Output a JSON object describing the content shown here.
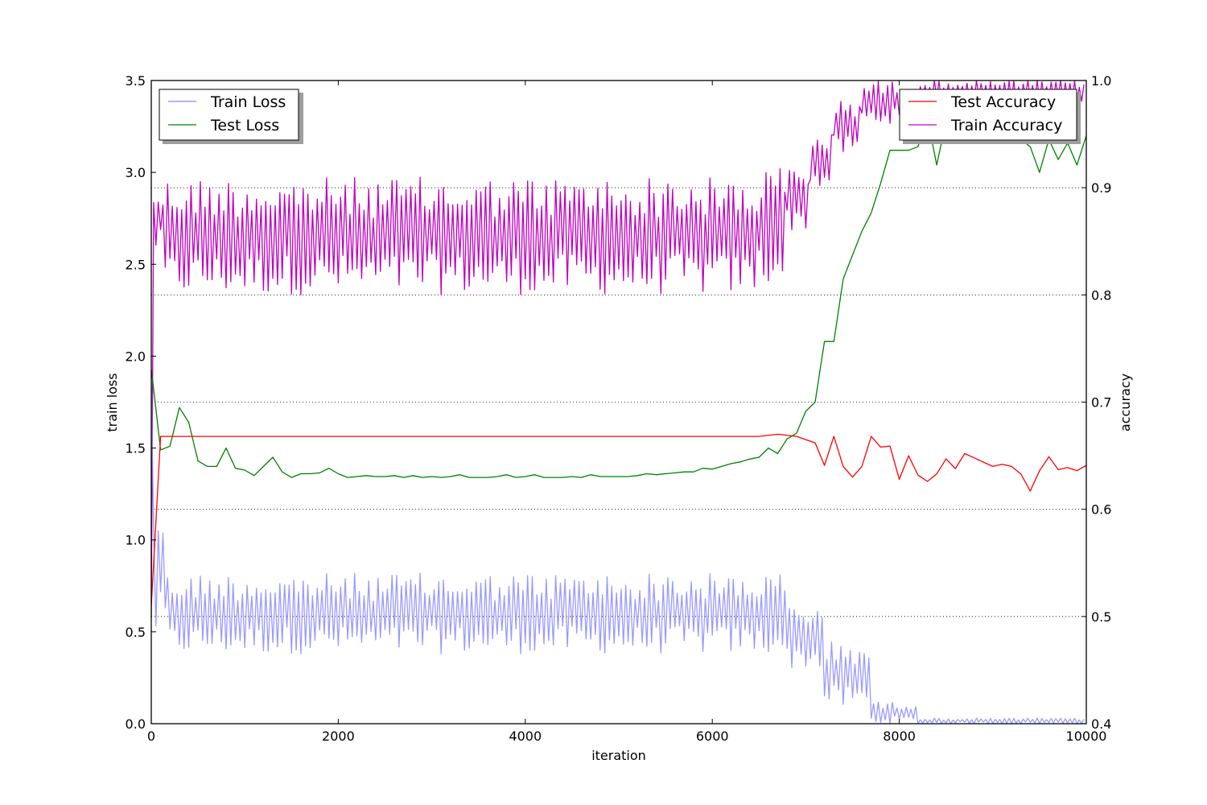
{
  "chart_data": {
    "type": "line",
    "xlabel": "iteration",
    "ylabel_left": "train loss",
    "ylabel_right": "accuracy",
    "xlim": [
      0,
      10000
    ],
    "ylim_left": [
      0.0,
      3.5
    ],
    "ylim_right": [
      0.4,
      1.0
    ],
    "x_ticks": [
      0,
      2000,
      4000,
      6000,
      8000,
      10000
    ],
    "x_tick_labels": [
      "0",
      "2000",
      "4000",
      "6000",
      "8000",
      "10000"
    ],
    "y_left_ticks": [
      0.0,
      0.5,
      1.0,
      1.5,
      2.0,
      2.5,
      3.0,
      3.5
    ],
    "y_left_tick_labels": [
      "0.0",
      "0.5",
      "1.0",
      "1.5",
      "2.0",
      "2.5",
      "3.0",
      "3.5"
    ],
    "y_right_ticks": [
      0.4,
      0.5,
      0.6,
      0.7,
      0.8,
      0.9,
      1.0
    ],
    "y_right_tick_labels": [
      "0.4",
      "0.5",
      "0.6",
      "0.7",
      "0.8",
      "0.9",
      "1.0"
    ],
    "grid": "dotted horizontal at accuracy ticks",
    "legend_left": {
      "placement": "top-left",
      "entries": [
        "Train Loss",
        "Test Loss"
      ]
    },
    "legend_right": {
      "placement": "top-right",
      "entries": [
        "Test Accuracy",
        "Train Accuracy"
      ]
    },
    "series": [
      {
        "name": "Train Loss",
        "axis": "left",
        "color": "#8888ff",
        "opacity": 0.85,
        "generator": {
          "step": 25,
          "start": 1.9,
          "segments": [
            {
              "x0": 25,
              "x1": 175,
              "low": 0.45,
              "high": 1.22
            },
            {
              "x0": 175,
              "x1": 6800,
              "low": 0.38,
              "high": 0.82
            },
            {
              "x0": 6800,
              "x1": 7200,
              "low": 0.3,
              "high": 0.65
            },
            {
              "x0": 7200,
              "x1": 7700,
              "low": 0.08,
              "high": 0.45
            },
            {
              "x0": 7700,
              "x1": 8200,
              "low": 0.0,
              "high": 0.12
            },
            {
              "x0": 8200,
              "x1": 10000,
              "low": 0.0,
              "high": 0.03
            }
          ]
        }
      },
      {
        "name": "Test Loss",
        "axis": "left",
        "color": "#008000",
        "x": [
          0,
          100,
          200,
          300,
          400,
          500,
          600,
          700,
          800,
          900,
          1000,
          1100,
          1200,
          1300,
          1400,
          1500,
          1600,
          1700,
          1800,
          1900,
          2000,
          2100,
          2200,
          2300,
          2400,
          2500,
          2600,
          2700,
          2800,
          2900,
          3000,
          3100,
          3200,
          3300,
          3400,
          3500,
          3600,
          3700,
          3800,
          3900,
          4000,
          4100,
          4200,
          4300,
          4400,
          4500,
          4600,
          4700,
          4800,
          4900,
          5000,
          5100,
          5200,
          5300,
          5400,
          5500,
          5600,
          5700,
          5800,
          5900,
          6000,
          6100,
          6200,
          6300,
          6400,
          6500,
          6600,
          6700,
          6800,
          6900,
          7000,
          7100,
          7200,
          7300,
          7400,
          7500,
          7600,
          7700,
          7800,
          7900,
          8000,
          8100,
          8200,
          8300,
          8400,
          8500,
          8600,
          8700,
          8800,
          8900,
          9000,
          9100,
          9200,
          9300,
          9400,
          9500,
          9600,
          9700,
          9800,
          9900,
          10000
        ],
        "y": [
          1.93,
          1.49,
          1.51,
          1.72,
          1.64,
          1.43,
          1.4,
          1.4,
          1.5,
          1.39,
          1.38,
          1.35,
          1.4,
          1.45,
          1.37,
          1.34,
          1.36,
          1.36,
          1.365,
          1.39,
          1.36,
          1.34,
          1.345,
          1.35,
          1.345,
          1.345,
          1.35,
          1.34,
          1.35,
          1.34,
          1.345,
          1.34,
          1.345,
          1.355,
          1.34,
          1.34,
          1.34,
          1.345,
          1.355,
          1.34,
          1.345,
          1.355,
          1.34,
          1.34,
          1.34,
          1.345,
          1.34,
          1.355,
          1.345,
          1.345,
          1.345,
          1.345,
          1.35,
          1.36,
          1.355,
          1.36,
          1.365,
          1.37,
          1.37,
          1.39,
          1.385,
          1.4,
          1.415,
          1.425,
          1.44,
          1.45,
          1.5,
          1.47,
          1.55,
          1.58,
          1.7,
          1.75,
          2.08,
          2.08,
          2.42,
          2.55,
          2.68,
          2.78,
          2.94,
          3.12,
          3.12,
          3.12,
          3.14,
          3.3,
          3.04,
          3.28,
          3.3,
          3.16,
          3.25,
          3.25,
          3.25,
          3.28,
          3.2,
          3.18,
          3.14,
          3.0,
          3.18,
          3.07,
          3.16,
          3.04,
          3.2
        ]
      },
      {
        "name": "Test Accuracy",
        "axis": "right",
        "color": "#ff0000",
        "x": [
          0,
          100,
          200,
          6500,
          6700,
          6900,
          7100,
          7200,
          7300,
          7400,
          7500,
          7600,
          7700,
          7800,
          7900,
          8000,
          8100,
          8200,
          8300,
          8400,
          8500,
          8600,
          8700,
          8800,
          8900,
          9000,
          9100,
          9200,
          9300,
          9400,
          9500,
          9600,
          9700,
          9800,
          9900,
          10000
        ],
        "y": [
          0.51,
          0.668,
          0.668,
          0.668,
          0.67,
          0.668,
          0.662,
          0.641,
          0.668,
          0.64,
          0.63,
          0.64,
          0.668,
          0.658,
          0.659,
          0.628,
          0.65,
          0.632,
          0.626,
          0.633,
          0.647,
          0.638,
          0.652,
          0.648,
          0.644,
          0.64,
          0.642,
          0.64,
          0.633,
          0.617,
          0.636,
          0.649,
          0.637,
          0.639,
          0.636,
          0.641
        ]
      },
      {
        "name": "Train Accuracy",
        "axis": "right",
        "color": "#bf00bf",
        "generator": {
          "step": 25,
          "start": 0.5,
          "segments": [
            {
              "x0": 25,
              "x1": 125,
              "low": 0.84,
              "high": 0.9
            },
            {
              "x0": 125,
              "x1": 6500,
              "low": 0.8,
              "high": 0.91
            },
            {
              "x0": 6500,
              "x1": 6800,
              "low": 0.81,
              "high": 0.92
            },
            {
              "x0": 6800,
              "x1": 7050,
              "low": 0.86,
              "high": 0.92
            },
            {
              "x0": 7050,
              "x1": 7300,
              "low": 0.9,
              "high": 0.95
            },
            {
              "x0": 7300,
              "x1": 7600,
              "low": 0.93,
              "high": 0.985
            },
            {
              "x0": 7600,
              "x1": 8200,
              "low": 0.96,
              "high": 1.0
            },
            {
              "x0": 8200,
              "x1": 10000,
              "low": 0.98,
              "high": 1.0
            }
          ]
        }
      }
    ]
  }
}
